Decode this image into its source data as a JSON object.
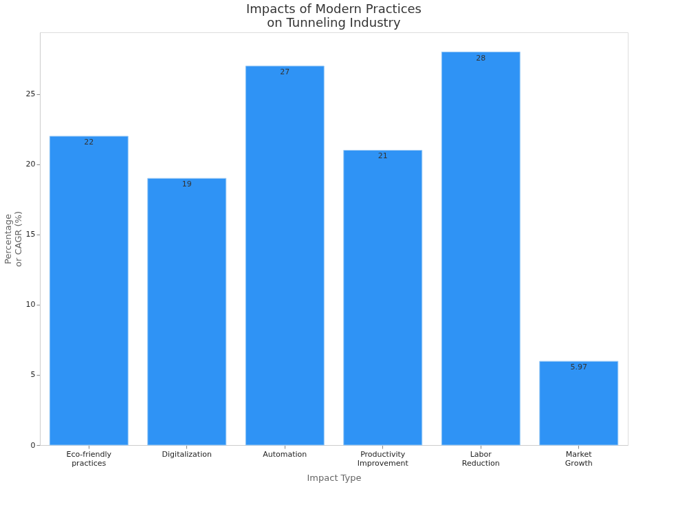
{
  "chart_data": {
    "type": "bar",
    "title": "Impacts of Modern Practices on Tunneling Industry",
    "xlabel": "Impact Type",
    "ylabel": "Percentage or CAGR (%)",
    "categories": [
      "Eco-friendly practices",
      "Digitalization",
      "Automation",
      "Productivity Improvement",
      "Labor Reduction",
      "Market Growth"
    ],
    "values": [
      22,
      19,
      27,
      21,
      28,
      5.97
    ],
    "color": "#2f93f5",
    "ylim": [
      0,
      29.4
    ],
    "yticks": [
      0,
      5,
      10,
      15,
      20,
      25
    ],
    "grid": false,
    "data_labels": true
  }
}
